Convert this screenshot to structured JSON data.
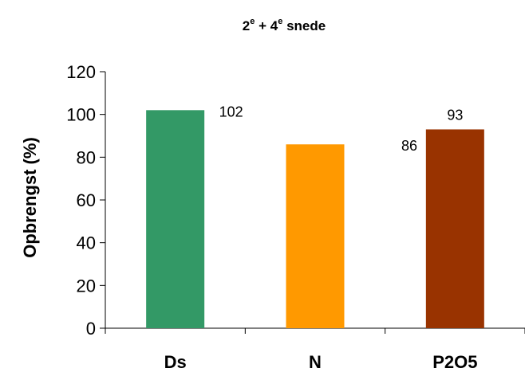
{
  "chart_data": {
    "type": "bar",
    "title": {
      "part1": "2",
      "sup1": "e",
      "part2": " + 4",
      "sup2": "e",
      "part3": " snede"
    },
    "categories": [
      "Ds",
      "N",
      "P2O5"
    ],
    "values": [
      102,
      86,
      93
    ],
    "data_labels": [
      "102",
      "86",
      "93"
    ],
    "colors": [
      "#339966",
      "#FF9900",
      "#993300"
    ],
    "ylabel": "Opbrengst (%)",
    "xlabel": "",
    "ylim": [
      0,
      120
    ],
    "yticks": [
      0,
      20,
      40,
      60,
      80,
      100,
      120
    ],
    "grid": false,
    "legend": "none"
  }
}
